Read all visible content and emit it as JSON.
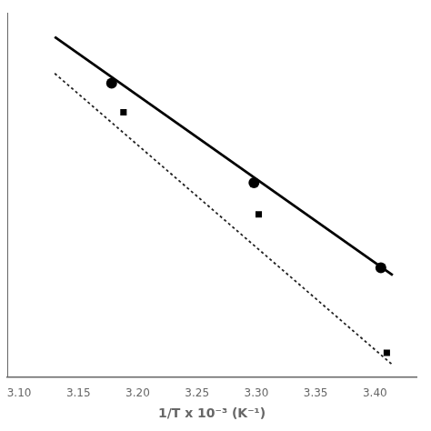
{
  "chart_data": {
    "type": "scatter",
    "title": "",
    "xlabel": "1/T x 10⁻³ (K⁻¹)",
    "xlim": [
      3.09,
      3.435
    ],
    "xticks": [
      {
        "value": 3.1,
        "label": "3.10"
      },
      {
        "value": 3.15,
        "label": "3.15"
      },
      {
        "value": 3.2,
        "label": "3.20"
      },
      {
        "value": 3.25,
        "label": "3.25"
      },
      {
        "value": 3.3,
        "label": "3.30"
      },
      {
        "value": 3.35,
        "label": "3.35"
      },
      {
        "value": 3.4,
        "label": "3.40"
      }
    ],
    "ylim": [
      -2.5,
      12.5
    ],
    "grid": false,
    "tick_labels": "x",
    "series": [
      {
        "type": "line",
        "line_style": "solid",
        "color": "#000000",
        "x": [
          3.13,
          3.415
        ],
        "values": [
          11.5,
          1.7
        ]
      },
      {
        "type": "line",
        "line_style": "dotted",
        "color": "#222222",
        "x": [
          3.13,
          3.415
        ],
        "values": [
          10.0,
          -2.0
        ]
      },
      {
        "type": "scatter",
        "marker": "circle",
        "color": "#000000",
        "x": [
          3.178,
          3.298,
          3.405
        ],
        "values": [
          9.6,
          5.5,
          2.0
        ]
      },
      {
        "type": "scatter",
        "marker": "square",
        "color": "#000000",
        "x": [
          3.188,
          3.302,
          3.41
        ],
        "values": [
          8.4,
          4.2,
          -1.5
        ]
      }
    ]
  }
}
